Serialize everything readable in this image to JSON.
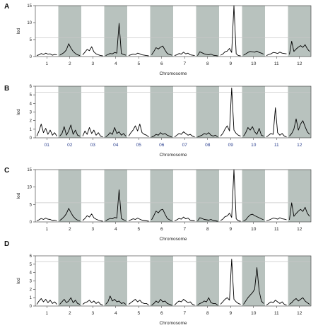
{
  "colors": {
    "shade": "#b8c2be",
    "threshold": "#c8c8c8",
    "line": "#000000"
  },
  "chart_data": [
    {
      "panel": "A",
      "type": "line",
      "ylabel": "lod",
      "xlabel": "Chromosome",
      "ylim": [
        0,
        15
      ],
      "yticks": [
        0,
        5,
        10,
        15
      ],
      "threshold": 5.5,
      "grid": false,
      "chromosomes": [
        "1",
        "2",
        "3",
        "4",
        "5",
        "6",
        "7",
        "8",
        "9",
        "10",
        "11",
        "12"
      ],
      "shaded": [
        false,
        true,
        false,
        true,
        false,
        true,
        false,
        true,
        false,
        true,
        false,
        true
      ],
      "series": [
        {
          "values": [
            [
              0.3,
              0.5,
              0.9,
              0.6,
              1.0,
              0.7,
              0.8,
              0.4,
              0.6,
              0.5
            ],
            [
              0.4,
              0.8,
              1.2,
              2.0,
              3.8,
              2.5,
              1.5,
              0.9,
              0.5,
              0.3
            ],
            [
              0.5,
              1.3,
              2.1,
              1.7,
              2.9,
              1.4,
              0.8,
              0.5,
              0.3,
              0.2
            ],
            [
              0.3,
              0.6,
              0.9,
              0.8,
              1.2,
              1.0,
              9.8,
              0.9,
              0.6,
              0.4
            ],
            [
              0.3,
              0.5,
              0.7,
              0.6,
              1.0,
              0.8,
              0.5,
              0.4,
              0.3,
              0.2
            ],
            [
              0.5,
              1.5,
              2.6,
              2.2,
              2.8,
              3.1,
              1.9,
              0.9,
              0.6,
              0.4
            ],
            [
              0.3,
              0.5,
              0.9,
              0.7,
              1.3,
              0.8,
              1.0,
              0.5,
              0.4,
              0.3
            ],
            [
              0.3,
              1.4,
              1.1,
              0.8,
              0.6,
              0.5,
              0.7,
              0.4,
              0.3,
              0.2
            ],
            [
              0.4,
              0.7,
              1.4,
              1.6,
              2.4,
              1.2,
              15.0,
              0.8,
              0.3,
              0.2
            ],
            [
              0.4,
              0.8,
              1.2,
              1.5,
              1.4,
              1.3,
              1.6,
              1.2,
              1.0,
              0.7
            ],
            [
              0.3,
              0.6,
              0.8,
              1.2,
              1.1,
              0.9,
              1.3,
              1.0,
              0.9,
              0.8
            ],
            [
              0.6,
              4.5,
              1.5,
              2.2,
              2.8,
              3.2,
              2.7,
              3.5,
              2.3,
              1.5
            ]
          ]
        }
      ]
    },
    {
      "panel": "B",
      "type": "line",
      "ylabel": "lod",
      "xlabel": "Chromosome",
      "ylim": [
        0,
        6
      ],
      "yticks": [
        0,
        1,
        2,
        3,
        4,
        5,
        6
      ],
      "threshold": 5.3,
      "grid": false,
      "chromosomes": [
        "01",
        "02",
        "03",
        "04",
        "05",
        "06",
        "07",
        "08",
        "09",
        "10",
        "11",
        "12"
      ],
      "shaded": [
        false,
        true,
        false,
        true,
        false,
        true,
        false,
        true,
        false,
        true,
        false,
        true
      ],
      "series": [
        {
          "values": [
            [
              0.2,
              0.8,
              1.6,
              0.6,
              1.1,
              0.4,
              0.9,
              0.3,
              0.6,
              0.2
            ],
            [
              0.2,
              0.5,
              1.3,
              0.3,
              0.8,
              1.5,
              0.4,
              0.9,
              0.3,
              0.2
            ],
            [
              0.2,
              0.8,
              0.4,
              1.2,
              0.5,
              0.9,
              0.3,
              0.6,
              0.2,
              0.1
            ],
            [
              0.1,
              0.3,
              0.6,
              0.4,
              1.2,
              0.5,
              0.7,
              0.3,
              0.5,
              0.2
            ],
            [
              0.2,
              0.6,
              0.9,
              1.4,
              0.8,
              1.6,
              0.6,
              0.4,
              0.3,
              0.1
            ],
            [
              0.1,
              0.2,
              0.4,
              0.3,
              0.6,
              0.4,
              0.5,
              0.3,
              0.2,
              0.1
            ],
            [
              0.1,
              0.3,
              0.5,
              0.4,
              0.7,
              0.5,
              0.3,
              0.4,
              0.2,
              0.1
            ],
            [
              0.1,
              0.2,
              0.3,
              0.5,
              0.4,
              0.6,
              0.3,
              0.2,
              0.3,
              0.1
            ],
            [
              0.2,
              0.5,
              1.0,
              1.4,
              0.8,
              5.8,
              0.9,
              0.5,
              0.3,
              0.2
            ],
            [
              0.2,
              0.6,
              1.2,
              0.9,
              1.3,
              0.7,
              0.4,
              1.1,
              0.3,
              0.2
            ],
            [
              0.1,
              0.3,
              0.5,
              0.4,
              3.5,
              0.6,
              0.3,
              0.5,
              0.2,
              0.1
            ],
            [
              0.2,
              0.5,
              1.0,
              2.2,
              0.9,
              1.6,
              2.0,
              1.3,
              0.7,
              0.4
            ]
          ]
        }
      ]
    },
    {
      "panel": "C",
      "type": "line",
      "ylabel": "lod",
      "xlabel": "Chromosome",
      "ylim": [
        0,
        15
      ],
      "yticks": [
        0,
        5,
        10,
        15
      ],
      "threshold": 5.5,
      "grid": false,
      "chromosomes": [
        "1",
        "2",
        "3",
        "4",
        "5",
        "6",
        "7",
        "8",
        "9",
        "10",
        "11",
        "12"
      ],
      "shaded": [
        false,
        true,
        false,
        true,
        false,
        true,
        false,
        true,
        false,
        true,
        false,
        true
      ],
      "series": [
        {
          "values": [
            [
              0.3,
              0.6,
              1.0,
              0.7,
              1.1,
              0.8,
              0.7,
              0.4,
              0.5,
              0.3
            ],
            [
              0.4,
              0.9,
              1.5,
              2.4,
              3.9,
              2.7,
              1.6,
              0.9,
              0.5,
              0.3
            ],
            [
              0.4,
              1.0,
              1.8,
              1.4,
              2.3,
              1.2,
              0.8,
              0.5,
              0.3,
              0.2
            ],
            [
              0.3,
              0.7,
              1.0,
              0.9,
              1.3,
              1.1,
              9.2,
              1.0,
              0.6,
              0.4
            ],
            [
              0.3,
              0.6,
              0.9,
              0.7,
              1.1,
              0.8,
              0.5,
              0.4,
              0.3,
              0.2
            ],
            [
              0.6,
              1.8,
              3.1,
              2.6,
              3.4,
              3.6,
              2.2,
              1.0,
              0.6,
              0.4
            ],
            [
              0.3,
              0.6,
              1.0,
              0.8,
              1.4,
              0.9,
              1.1,
              0.5,
              0.4,
              0.3
            ],
            [
              0.3,
              1.2,
              1.0,
              0.7,
              0.6,
              0.5,
              0.7,
              0.4,
              0.3,
              0.2
            ],
            [
              0.4,
              0.8,
              1.5,
              1.7,
              2.5,
              1.3,
              16.5,
              0.9,
              0.3,
              0.2
            ],
            [
              0.3,
              0.6,
              1.4,
              2.0,
              2.2,
              1.8,
              1.5,
              1.2,
              0.9,
              0.6
            ],
            [
              0.3,
              0.5,
              0.8,
              1.1,
              1.0,
              0.8,
              1.2,
              0.9,
              0.8,
              0.6
            ],
            [
              0.6,
              5.5,
              1.6,
              2.4,
              3.1,
              3.6,
              3.0,
              4.2,
              2.5,
              1.6
            ]
          ]
        }
      ]
    },
    {
      "panel": "D",
      "type": "line",
      "ylabel": "lod",
      "xlabel": "Chromosome",
      "ylim": [
        0,
        6
      ],
      "yticks": [
        0,
        1,
        2,
        3,
        4,
        5,
        6
      ],
      "threshold": 5.3,
      "grid": false,
      "chromosomes": [
        "1",
        "2",
        "3",
        "4",
        "5",
        "6",
        "7",
        "8",
        "9",
        "10",
        "11",
        "12"
      ],
      "shaded": [
        false,
        true,
        false,
        true,
        false,
        true,
        false,
        true,
        false,
        true,
        false,
        true
      ],
      "series": [
        {
          "values": [
            [
              0.2,
              0.6,
              0.9,
              0.5,
              0.8,
              0.4,
              0.7,
              0.3,
              0.5,
              0.2
            ],
            [
              0.2,
              0.5,
              0.8,
              0.4,
              0.6,
              1.0,
              0.4,
              0.7,
              0.3,
              0.2
            ],
            [
              0.2,
              0.4,
              0.5,
              0.7,
              0.4,
              0.6,
              0.3,
              0.5,
              0.2,
              0.1
            ],
            [
              0.2,
              0.5,
              1.2,
              0.6,
              0.8,
              0.5,
              0.6,
              0.3,
              0.4,
              0.2
            ],
            [
              0.2,
              0.4,
              0.6,
              0.8,
              0.5,
              0.7,
              0.4,
              0.3,
              0.3,
              0.1
            ],
            [
              0.1,
              0.3,
              0.6,
              0.4,
              0.8,
              0.5,
              0.6,
              0.3,
              0.2,
              0.1
            ],
            [
              0.1,
              0.4,
              0.6,
              0.5,
              0.8,
              0.6,
              0.4,
              0.5,
              0.2,
              0.1
            ],
            [
              0.1,
              0.3,
              0.4,
              0.6,
              0.5,
              1.0,
              0.4,
              0.3,
              0.3,
              0.1
            ],
            [
              0.2,
              0.5,
              0.8,
              1.0,
              0.7,
              5.6,
              0.8,
              0.5,
              0.3,
              0.2
            ],
            [
              0.2,
              0.6,
              1.0,
              1.3,
              1.6,
              2.0,
              4.6,
              1.8,
              0.6,
              0.3
            ],
            [
              0.1,
              0.3,
              0.5,
              0.4,
              0.7,
              0.5,
              0.3,
              0.5,
              0.2,
              0.1
            ],
            [
              0.2,
              0.4,
              0.7,
              0.9,
              0.6,
              0.8,
              1.0,
              0.6,
              0.4,
              0.2
            ]
          ]
        }
      ]
    }
  ]
}
